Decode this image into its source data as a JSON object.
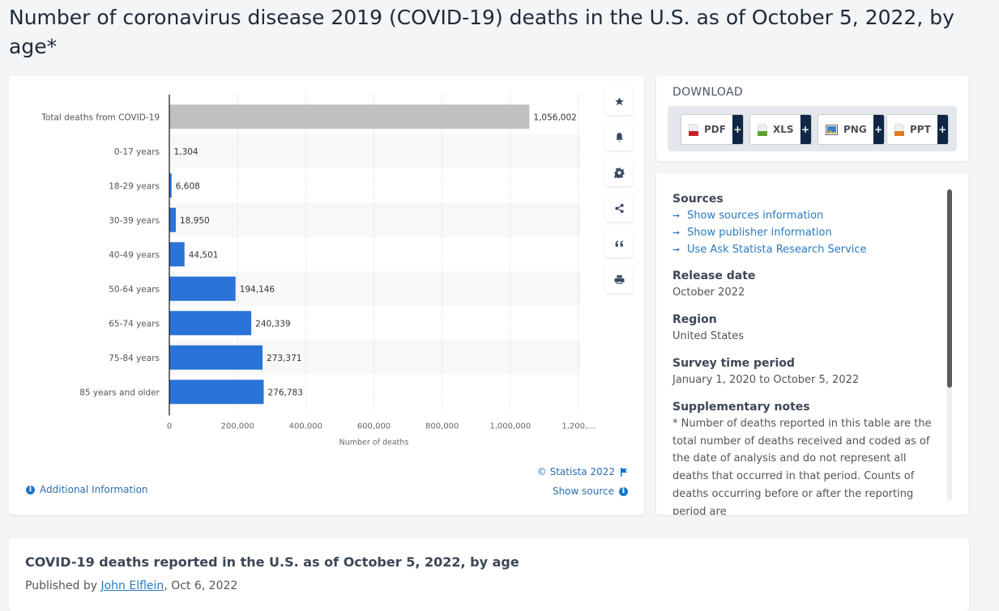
{
  "page": {
    "title": "Number of coronavirus disease 2019 (COVID-19) deaths in the U.S. as of October 5, 2022, by age*"
  },
  "chart_data": {
    "type": "bar",
    "orientation": "horizontal",
    "title": "Number of coronavirus disease 2019 (COVID-19) deaths in the U.S. as of October 5, 2022, by age*",
    "categories": [
      "Total deaths from COVID-19",
      "0-17 years",
      "18-29 years",
      "30-39 years",
      "40-49 years",
      "50-64 years",
      "65-74 years",
      "75-84 years",
      "85 years and older"
    ],
    "values": [
      1056002,
      1304,
      6608,
      18950,
      44501,
      194146,
      240339,
      273371,
      276783
    ],
    "value_labels": [
      "1,056,002",
      "1,304",
      "6,608",
      "18,950",
      "44,501",
      "194,146",
      "240,339",
      "273,371",
      "276,783"
    ],
    "colors": [
      "#c0c0c0",
      "#2a73d9",
      "#2a73d9",
      "#2a73d9",
      "#2a73d9",
      "#2a73d9",
      "#2a73d9",
      "#2a73d9",
      "#2a73d9"
    ],
    "xlabel": "Number of deaths",
    "ylabel": "",
    "xlim": [
      0,
      1200000
    ],
    "xticks": [
      0,
      200000,
      400000,
      600000,
      800000,
      1000000,
      1200000
    ],
    "xtick_labels": [
      "0",
      "200,000",
      "400,000",
      "600,000",
      "800,000",
      "1,000,000",
      "1,200,..."
    ],
    "grid": true,
    "legend": "none"
  },
  "chart_footer": {
    "additional_info": "Additional Information",
    "copyright": "© Statista 2022",
    "show_source": "Show source"
  },
  "tools": [
    "star",
    "bell",
    "gear",
    "share",
    "quote",
    "print"
  ],
  "download": {
    "label": "DOWNLOAD",
    "buttons": [
      {
        "label": "PDF",
        "icon": "pdf-file-icon",
        "color": "#c8202a"
      },
      {
        "label": "XLS",
        "icon": "xls-file-icon",
        "color": "#5aa02c"
      },
      {
        "label": "PNG",
        "icon": "png-image-icon",
        "color": "#3a7fc6"
      },
      {
        "label": "PPT",
        "icon": "ppt-file-icon",
        "color": "#e07a20"
      }
    ],
    "plus": "+"
  },
  "info": {
    "sources_heading": "Sources",
    "links": [
      "Show sources information",
      "Show publisher information",
      "Use Ask Statista Research Service"
    ],
    "release_date_heading": "Release date",
    "release_date": "October 2022",
    "region_heading": "Region",
    "region": "United States",
    "survey_period_heading": "Survey time period",
    "survey_period": "January 1, 2020 to October 5, 2022",
    "notes_heading": "Supplementary notes",
    "notes": "* Number of deaths reported in this table are the total number of deaths received and coded as of the date of analysis and do not represent all deaths that occurred in that period. Counts of deaths occurring before or after the reporting period are"
  },
  "article": {
    "title": "COVID-19 deaths reported in the U.S. as of October 5, 2022, by age",
    "published_prefix": "Published by ",
    "author": "John Elflein",
    "date_suffix": ", Oct 6, 2022"
  }
}
